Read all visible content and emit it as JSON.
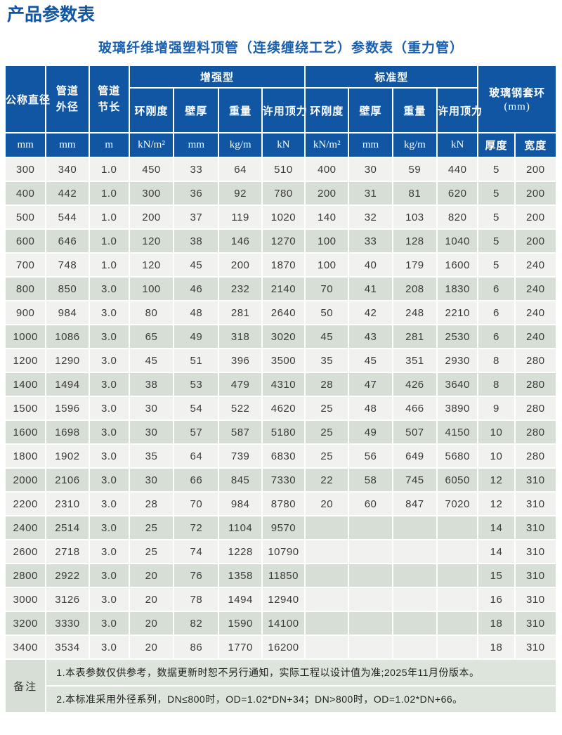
{
  "page": {
    "title": "产品参数表",
    "subtitle": "玻璃纤维增强塑料顶管（连续缠绕工艺）参数表（重力管）"
  },
  "colors": {
    "header_blue": "#1156a2",
    "title_blue": "#1156a2",
    "row_light": "#f1f1ef",
    "row_green": "#d7ded5",
    "note_bg": "#dde4db"
  },
  "table": {
    "header": {
      "nominal_diameter": "公称直径",
      "outer_diameter": "管道外径",
      "section_length": "管道节长",
      "group_reinforced": "增强型",
      "group_standard": "标准型",
      "group_collar": "玻璃钢套环",
      "group_collar_unit": "(mm)",
      "ring_stiffness": "环刚度",
      "wall_thickness": "壁厚",
      "weight": "重量",
      "allowable_jacking_force": "许用顶力"
    },
    "units": [
      "mm",
      "mm",
      "m",
      "kN/m²",
      "mm",
      "kg/m",
      "kN",
      "kN/m²",
      "mm",
      "kg/m",
      "kN",
      "厚度",
      "宽度"
    ],
    "rows": [
      [
        "300",
        "340",
        "1.0",
        "450",
        "33",
        "64",
        "510",
        "400",
        "30",
        "59",
        "440",
        "5",
        "200"
      ],
      [
        "400",
        "442",
        "1.0",
        "300",
        "36",
        "92",
        "780",
        "200",
        "31",
        "81",
        "620",
        "5",
        "200"
      ],
      [
        "500",
        "544",
        "1.0",
        "200",
        "37",
        "119",
        "1020",
        "140",
        "32",
        "103",
        "820",
        "5",
        "200"
      ],
      [
        "600",
        "646",
        "1.0",
        "120",
        "38",
        "146",
        "1270",
        "100",
        "33",
        "128",
        "1040",
        "5",
        "200"
      ],
      [
        "700",
        "748",
        "1.0",
        "120",
        "45",
        "200",
        "1870",
        "100",
        "40",
        "179",
        "1600",
        "5",
        "240"
      ],
      [
        "800",
        "850",
        "3.0",
        "100",
        "46",
        "232",
        "2140",
        "70",
        "41",
        "208",
        "1830",
        "6",
        "240"
      ],
      [
        "900",
        "984",
        "3.0",
        "80",
        "48",
        "281",
        "2640",
        "50",
        "42",
        "248",
        "2210",
        "6",
        "240"
      ],
      [
        "1000",
        "1086",
        "3.0",
        "65",
        "49",
        "318",
        "3020",
        "45",
        "43",
        "281",
        "2530",
        "6",
        "240"
      ],
      [
        "1200",
        "1290",
        "3.0",
        "45",
        "51",
        "396",
        "3500",
        "35",
        "45",
        "351",
        "2930",
        "8",
        "280"
      ],
      [
        "1400",
        "1494",
        "3.0",
        "38",
        "53",
        "479",
        "4310",
        "28",
        "47",
        "426",
        "3640",
        "8",
        "280"
      ],
      [
        "1500",
        "1596",
        "3.0",
        "30",
        "54",
        "522",
        "4620",
        "25",
        "48",
        "466",
        "3890",
        "9",
        "280"
      ],
      [
        "1600",
        "1698",
        "3.0",
        "30",
        "57",
        "587",
        "5180",
        "25",
        "49",
        "507",
        "4150",
        "10",
        "280"
      ],
      [
        "1800",
        "1902",
        "3.0",
        "35",
        "64",
        "739",
        "6830",
        "25",
        "56",
        "649",
        "5680",
        "10",
        "280"
      ],
      [
        "2000",
        "2106",
        "3.0",
        "30",
        "66",
        "845",
        "7330",
        "22",
        "58",
        "745",
        "6050",
        "12",
        "310"
      ],
      [
        "2200",
        "2310",
        "3.0",
        "28",
        "70",
        "984",
        "8780",
        "20",
        "60",
        "847",
        "7020",
        "12",
        "310"
      ],
      [
        "2400",
        "2514",
        "3.0",
        "25",
        "72",
        "1104",
        "9570",
        "",
        "",
        "",
        "",
        "14",
        "310"
      ],
      [
        "2600",
        "2718",
        "3.0",
        "25",
        "74",
        "1228",
        "10790",
        "",
        "",
        "",
        "",
        "14",
        "310"
      ],
      [
        "2800",
        "2922",
        "3.0",
        "20",
        "76",
        "1358",
        "11850",
        "",
        "",
        "",
        "",
        "15",
        "310"
      ],
      [
        "3000",
        "3126",
        "3.0",
        "20",
        "78",
        "1494",
        "12940",
        "",
        "",
        "",
        "",
        "16",
        "310"
      ],
      [
        "3200",
        "3330",
        "3.0",
        "20",
        "82",
        "1590",
        "14100",
        "",
        "",
        "",
        "",
        "18",
        "310"
      ],
      [
        "3400",
        "3534",
        "3.0",
        "20",
        "86",
        "1770",
        "16200",
        "",
        "",
        "",
        "",
        "18",
        "310"
      ]
    ],
    "notes_label": "备注",
    "notes": [
      "1.本表参数仅供参考，数据更新时恕不另行通知，实际工程以设计值为准;2025年11月份版本。",
      "2.本标准采用外径系列，DN≤800时，OD=1.02*DN+34；DN>800时，OD=1.02*DN+66。"
    ]
  }
}
